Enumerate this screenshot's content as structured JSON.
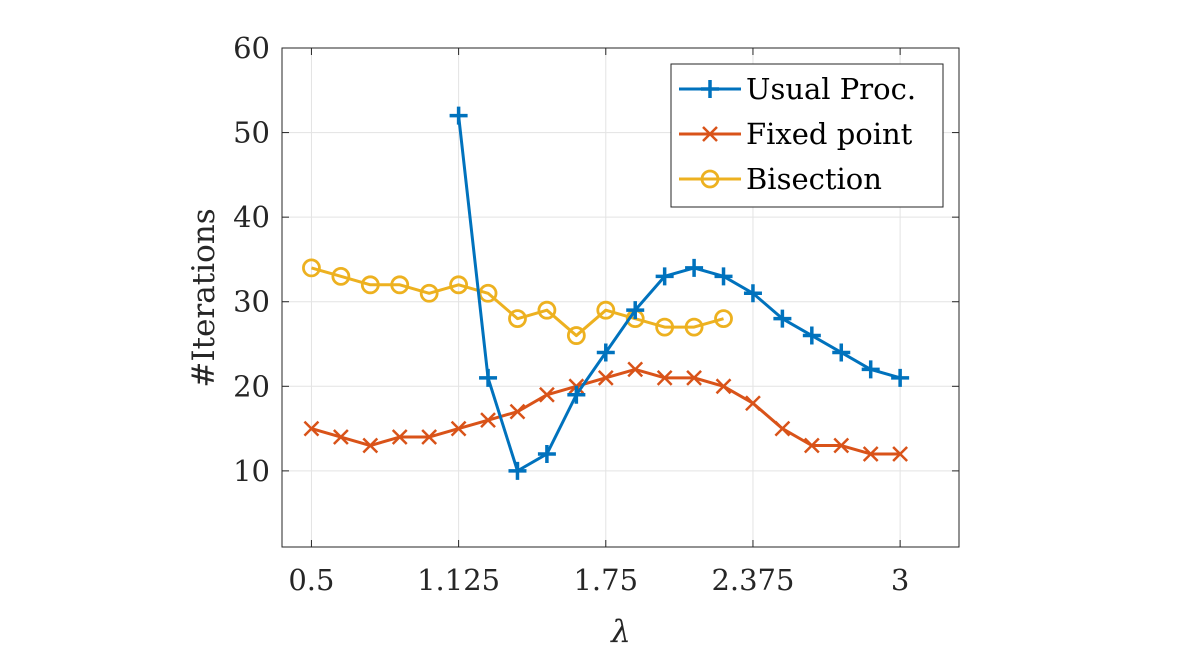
{
  "chart_data": {
    "type": "line",
    "xlabel": "λ",
    "ylabel": "#Iterations",
    "xlim": [
      0.375,
      3.25
    ],
    "ylim": [
      1,
      60
    ],
    "xticks": [
      0.5,
      1.125,
      1.75,
      2.375,
      3
    ],
    "xtick_labels": [
      "0.5",
      "1.125",
      "1.75",
      "2.375",
      "3"
    ],
    "yticks": [
      10,
      20,
      30,
      40,
      50,
      60
    ],
    "ytick_labels": [
      "10",
      "20",
      "30",
      "40",
      "50",
      "60"
    ],
    "grid": true,
    "legend_position": "top-right",
    "series": [
      {
        "name": "Usual Proc.",
        "color": "#0072BD",
        "marker": "plus",
        "x": [
          1.125,
          1.25,
          1.375,
          1.5,
          1.625,
          1.75,
          1.875,
          2.0,
          2.125,
          2.25,
          2.375,
          2.5,
          2.625,
          2.75,
          2.875,
          3.0
        ],
        "y": [
          52,
          21,
          10,
          12,
          19,
          24,
          29,
          33,
          34,
          33,
          31,
          28,
          26,
          24,
          22,
          21
        ]
      },
      {
        "name": "Fixed point",
        "color": "#D95319",
        "marker": "x",
        "x": [
          0.5,
          0.625,
          0.75,
          0.875,
          1.0,
          1.125,
          1.25,
          1.375,
          1.5,
          1.625,
          1.75,
          1.875,
          2.0,
          2.125,
          2.25,
          2.375,
          2.5,
          2.625,
          2.75,
          2.875,
          3.0
        ],
        "y": [
          15,
          14,
          13,
          14,
          14,
          15,
          16,
          17,
          19,
          20,
          21,
          22,
          21,
          21,
          20,
          18,
          15,
          13,
          13,
          12,
          12
        ]
      },
      {
        "name": "Bisection",
        "color": "#EDB120",
        "marker": "circle",
        "x": [
          0.5,
          0.625,
          0.75,
          0.875,
          1.0,
          1.125,
          1.25,
          1.375,
          1.5,
          1.625,
          1.75,
          1.875,
          2.0,
          2.125,
          2.25
        ],
        "y": [
          34,
          33,
          32,
          32,
          31,
          32,
          31,
          28,
          29,
          26,
          29,
          28,
          27,
          27,
          28
        ]
      }
    ]
  }
}
